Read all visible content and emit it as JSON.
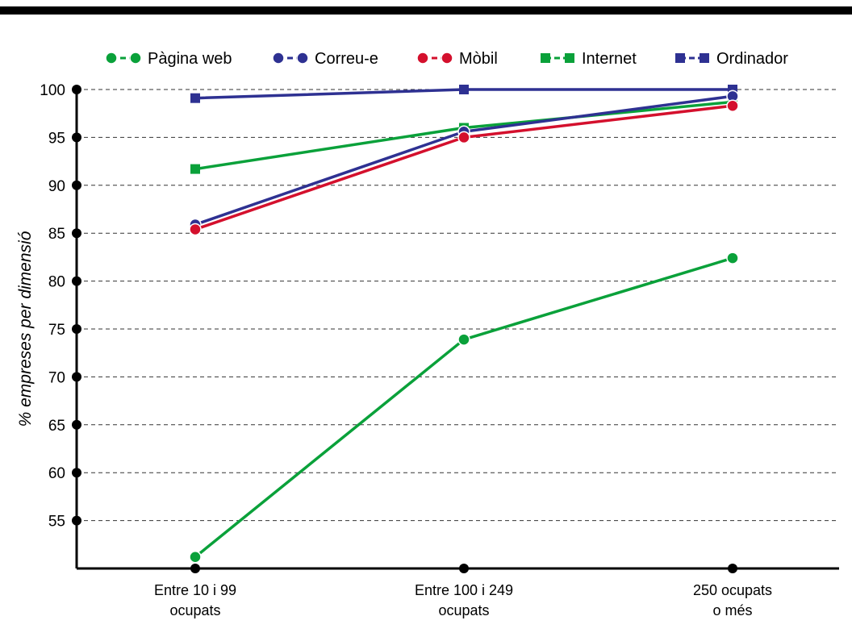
{
  "chart_data": {
    "type": "line",
    "title": "",
    "xlabel": "",
    "ylabel": "% empreses per dimensió",
    "categories": [
      [
        "Entre 10 i 99",
        "ocupats"
      ],
      [
        "Entre 100 i 249",
        "ocupats"
      ],
      [
        "250 ocupats",
        "o més"
      ]
    ],
    "y_ticks": [
      55,
      60,
      65,
      70,
      75,
      80,
      85,
      90,
      95,
      100
    ],
    "ylim": [
      50,
      100
    ],
    "grid": "horizontal-dashed",
    "legend_position": "top",
    "series": [
      {
        "name": "Ordinador",
        "marker": "square",
        "color": "#2e3192",
        "values": [
          99.1,
          100,
          100
        ]
      },
      {
        "name": "Internet",
        "marker": "square",
        "color": "#0aa13a",
        "values": [
          91.7,
          96.0,
          98.7
        ]
      },
      {
        "name": "Correu-e",
        "marker": "circle",
        "color": "#2e3192",
        "values": [
          85.9,
          95.6,
          99.3
        ]
      },
      {
        "name": "Mòbil",
        "marker": "circle",
        "color": "#d4102d",
        "values": [
          85.4,
          95.0,
          98.3
        ]
      },
      {
        "name": "Pàgina web",
        "marker": "circle",
        "color": "#0aa13a",
        "values": [
          51.2,
          73.9,
          82.4
        ]
      }
    ],
    "legend_order": [
      "Pàgina web",
      "Correu-e",
      "Mòbil",
      "Internet",
      "Ordinador"
    ]
  }
}
